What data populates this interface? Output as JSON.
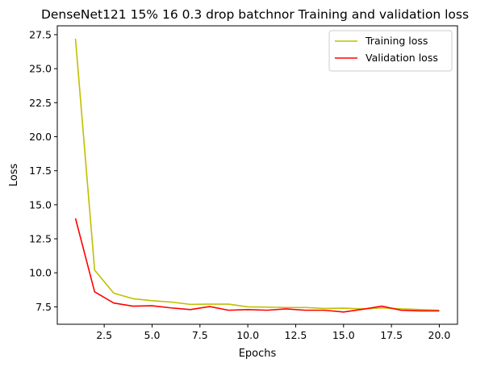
{
  "chart_data": {
    "type": "line",
    "title": "DenseNet121 15% 16 0.3 drop batchnor Training and validation loss",
    "xlabel": "Epochs",
    "ylabel": "Loss",
    "xlim": [
      0.05,
      20.95
    ],
    "ylim": [
      6.22,
      28.15
    ],
    "xticks": [
      2.5,
      5.0,
      7.5,
      10.0,
      12.5,
      15.0,
      17.5,
      20.0
    ],
    "xtick_labels": [
      "2.5",
      "5.0",
      "7.5",
      "10.0",
      "12.5",
      "15.0",
      "17.5",
      "20.0"
    ],
    "yticks": [
      7.5,
      10.0,
      12.5,
      15.0,
      17.5,
      20.0,
      22.5,
      25.0,
      27.5
    ],
    "ytick_labels": [
      "7.5",
      "10.0",
      "12.5",
      "15.0",
      "17.5",
      "20.0",
      "22.5",
      "25.0",
      "27.5"
    ],
    "grid": false,
    "legend_position": "top-right",
    "x": [
      1,
      2,
      3,
      4,
      5,
      6,
      7,
      8,
      9,
      10,
      11,
      12,
      13,
      14,
      15,
      16,
      17,
      18,
      19,
      20
    ],
    "series": [
      {
        "name": "Training loss",
        "color": "#bfbf00",
        "values": [
          27.2,
          10.2,
          8.5,
          8.1,
          7.95,
          7.85,
          7.68,
          7.7,
          7.7,
          7.5,
          7.48,
          7.45,
          7.45,
          7.38,
          7.4,
          7.35,
          7.42,
          7.35,
          7.3,
          7.25
        ]
      },
      {
        "name": "Validation loss",
        "color": "#ff0000",
        "values": [
          14.0,
          8.6,
          7.78,
          7.55,
          7.58,
          7.42,
          7.3,
          7.52,
          7.25,
          7.3,
          7.25,
          7.35,
          7.25,
          7.25,
          7.12,
          7.32,
          7.55,
          7.25,
          7.2,
          7.2
        ]
      }
    ]
  }
}
